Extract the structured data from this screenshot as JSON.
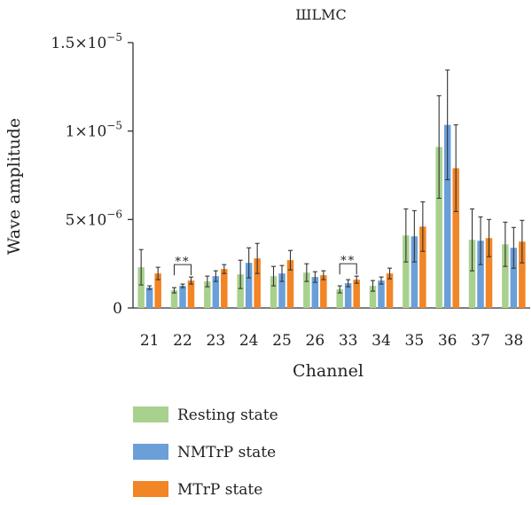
{
  "chart_data": {
    "type": "bar",
    "title": "ШLMC",
    "xlabel": "Channel",
    "ylabel": "Wave amplitude",
    "ylim": [
      0,
      1.5e-05
    ],
    "yticks": [
      {
        "value": 0,
        "mantissa": "0",
        "exponent": ""
      },
      {
        "value": 5e-06,
        "mantissa": "5×10",
        "exponent": "−6"
      },
      {
        "value": 1e-05,
        "mantissa": "1×10",
        "exponent": "−5"
      },
      {
        "value": 1.5e-05,
        "mantissa": "1.5×10",
        "exponent": "−5"
      }
    ],
    "categories": [
      "21",
      "22",
      "23",
      "24",
      "25",
      "26",
      "33",
      "34",
      "35",
      "36",
      "37",
      "38"
    ],
    "series": [
      {
        "name": "Resting state",
        "color": "#a9d18e",
        "values": [
          2.3e-06,
          1e-06,
          1.5e-06,
          1.9e-06,
          1.8e-06,
          2e-06,
          1.05e-06,
          1.25e-06,
          4.1e-06,
          9.1e-06,
          3.85e-06,
          3.6e-06
        ],
        "errors": [
          1e-06,
          1.5e-07,
          3e-07,
          8e-07,
          5.5e-07,
          5e-07,
          2e-07,
          3e-07,
          1.5e-06,
          2.9e-06,
          1.75e-06,
          1.25e-06
        ]
      },
      {
        "name": "NMTrP state",
        "color": "#6a9fd8",
        "values": [
          1.15e-06,
          1.25e-06,
          1.8e-06,
          2.55e-06,
          1.95e-06,
          1.75e-06,
          1.4e-06,
          1.55e-06,
          4.05e-06,
          1.035e-05,
          3.8e-06,
          3.4e-06
        ],
        "errors": [
          1e-07,
          1e-07,
          3e-07,
          8.5e-07,
          4.5e-07,
          3e-07,
          2e-07,
          2e-07,
          1.45e-06,
          3.1e-06,
          1.35e-06,
          1.15e-06
        ]
      },
      {
        "name": "MTrP state",
        "color": "#f28525",
        "values": [
          1.95e-06,
          1.55e-06,
          2.2e-06,
          2.8e-06,
          2.7e-06,
          1.85e-06,
          1.6e-06,
          1.95e-06,
          4.6e-06,
          7.9e-06,
          3.95e-06,
          3.75e-06
        ],
        "errors": [
          3.5e-07,
          2e-07,
          2.5e-07,
          8.5e-07,
          5.5e-07,
          2.5e-07,
          2e-07,
          3e-07,
          1.4e-06,
          2.45e-06,
          1.05e-06,
          1.2e-06
        ]
      }
    ],
    "significance": [
      {
        "category": "22",
        "label": "**"
      },
      {
        "category": "33",
        "label": "**"
      }
    ],
    "legend": {
      "position": "bottom-left",
      "entries": [
        "Resting state",
        "NMTrP state",
        "MTrP state"
      ]
    },
    "grid": false
  }
}
